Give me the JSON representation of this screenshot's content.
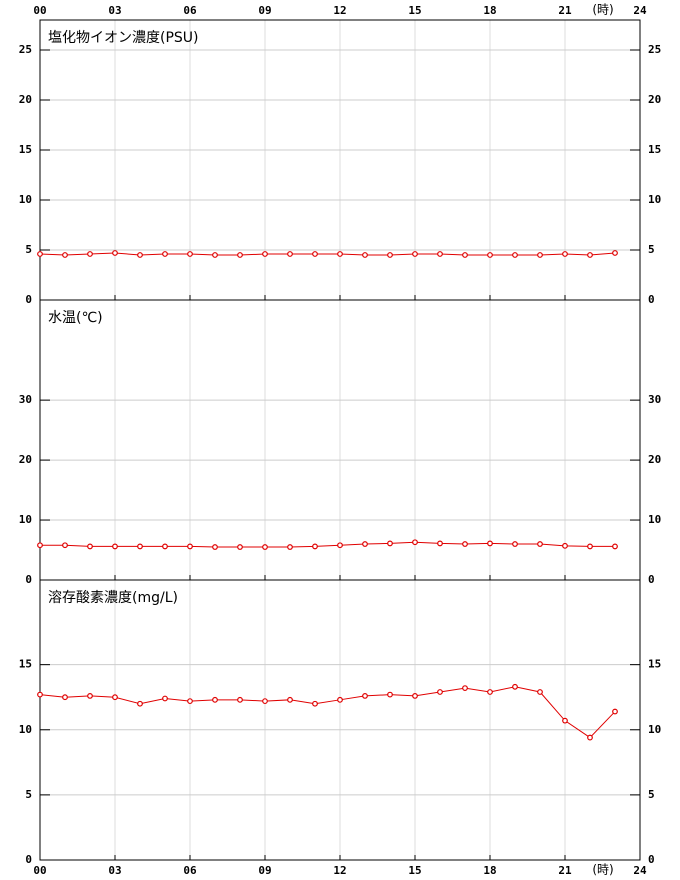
{
  "chart_data": [
    {
      "type": "line",
      "title": "塩化物イオン濃度(PSU)",
      "xlabel": "(時)",
      "xlabel_side": "top",
      "x": [
        0,
        1,
        2,
        3,
        4,
        5,
        6,
        7,
        8,
        9,
        10,
        11,
        12,
        13,
        14,
        15,
        16,
        17,
        18,
        19,
        20,
        21,
        22,
        23
      ],
      "xlim": [
        0,
        24
      ],
      "xticks": [
        {
          "value": 0,
          "label": "00"
        },
        {
          "value": 3,
          "label": "03"
        },
        {
          "value": 6,
          "label": "06"
        },
        {
          "value": 9,
          "label": "09"
        },
        12,
        15,
        18,
        21,
        24
      ],
      "ylim": [
        0,
        28
      ],
      "yticks": [
        0,
        5,
        10,
        15,
        20,
        25
      ],
      "grid": true,
      "series": [
        {
          "color": "#e00000",
          "values": [
            4.6,
            4.5,
            4.6,
            4.7,
            4.5,
            4.6,
            4.6,
            4.5,
            4.5,
            4.6,
            4.6,
            4.6,
            4.6,
            4.5,
            4.5,
            4.6,
            4.6,
            4.5,
            4.5,
            4.5,
            4.5,
            4.6,
            4.5,
            4.7
          ]
        }
      ]
    },
    {
      "type": "line",
      "title": "水温(℃)",
      "x": [
        0,
        1,
        2,
        3,
        4,
        5,
        6,
        7,
        8,
        9,
        10,
        11,
        12,
        13,
        14,
        15,
        16,
        17,
        18,
        19,
        20,
        21,
        22,
        23
      ],
      "xlim": [
        0,
        24
      ],
      "xticks": [
        {
          "value": 0,
          "label": "00"
        },
        {
          "value": 3,
          "label": "03"
        },
        {
          "value": 6,
          "label": "06"
        },
        {
          "value": 9,
          "label": "09"
        },
        12,
        15,
        18,
        21,
        24
      ],
      "ylim": [
        0,
        46.7
      ],
      "yticks": [
        0,
        10,
        20,
        30
      ],
      "grid": true,
      "series": [
        {
          "color": "#e00000",
          "values": [
            5.8,
            5.8,
            5.6,
            5.6,
            5.6,
            5.6,
            5.6,
            5.5,
            5.5,
            5.5,
            5.5,
            5.6,
            5.8,
            6.0,
            6.1,
            6.3,
            6.1,
            6.0,
            6.1,
            6.0,
            6.0,
            5.7,
            5.6,
            5.6
          ]
        }
      ]
    },
    {
      "type": "line",
      "title": "溶存酸素濃度(mg/L)",
      "xlabel": "(時)",
      "xlabel_side": "bottom",
      "x": [
        0,
        1,
        2,
        3,
        4,
        5,
        6,
        7,
        8,
        9,
        10,
        11,
        12,
        13,
        14,
        15,
        16,
        17,
        18,
        19,
        20,
        21,
        22,
        23
      ],
      "xlim": [
        0,
        24
      ],
      "xticks": [
        {
          "value": 0,
          "label": "00"
        },
        {
          "value": 3,
          "label": "03"
        },
        {
          "value": 6,
          "label": "06"
        },
        {
          "value": 9,
          "label": "09"
        },
        12,
        15,
        18,
        21,
        24
      ],
      "ylim": [
        0,
        21.5
      ],
      "yticks": [
        0,
        5,
        10,
        15
      ],
      "grid": true,
      "series": [
        {
          "color": "#e00000",
          "values": [
            12.7,
            12.5,
            12.6,
            12.5,
            12.0,
            12.4,
            12.2,
            12.3,
            12.3,
            12.2,
            12.3,
            12.0,
            12.3,
            12.6,
            12.7,
            12.6,
            12.9,
            13.2,
            12.9,
            13.3,
            12.9,
            10.7,
            9.4,
            11.4
          ]
        }
      ]
    }
  ]
}
